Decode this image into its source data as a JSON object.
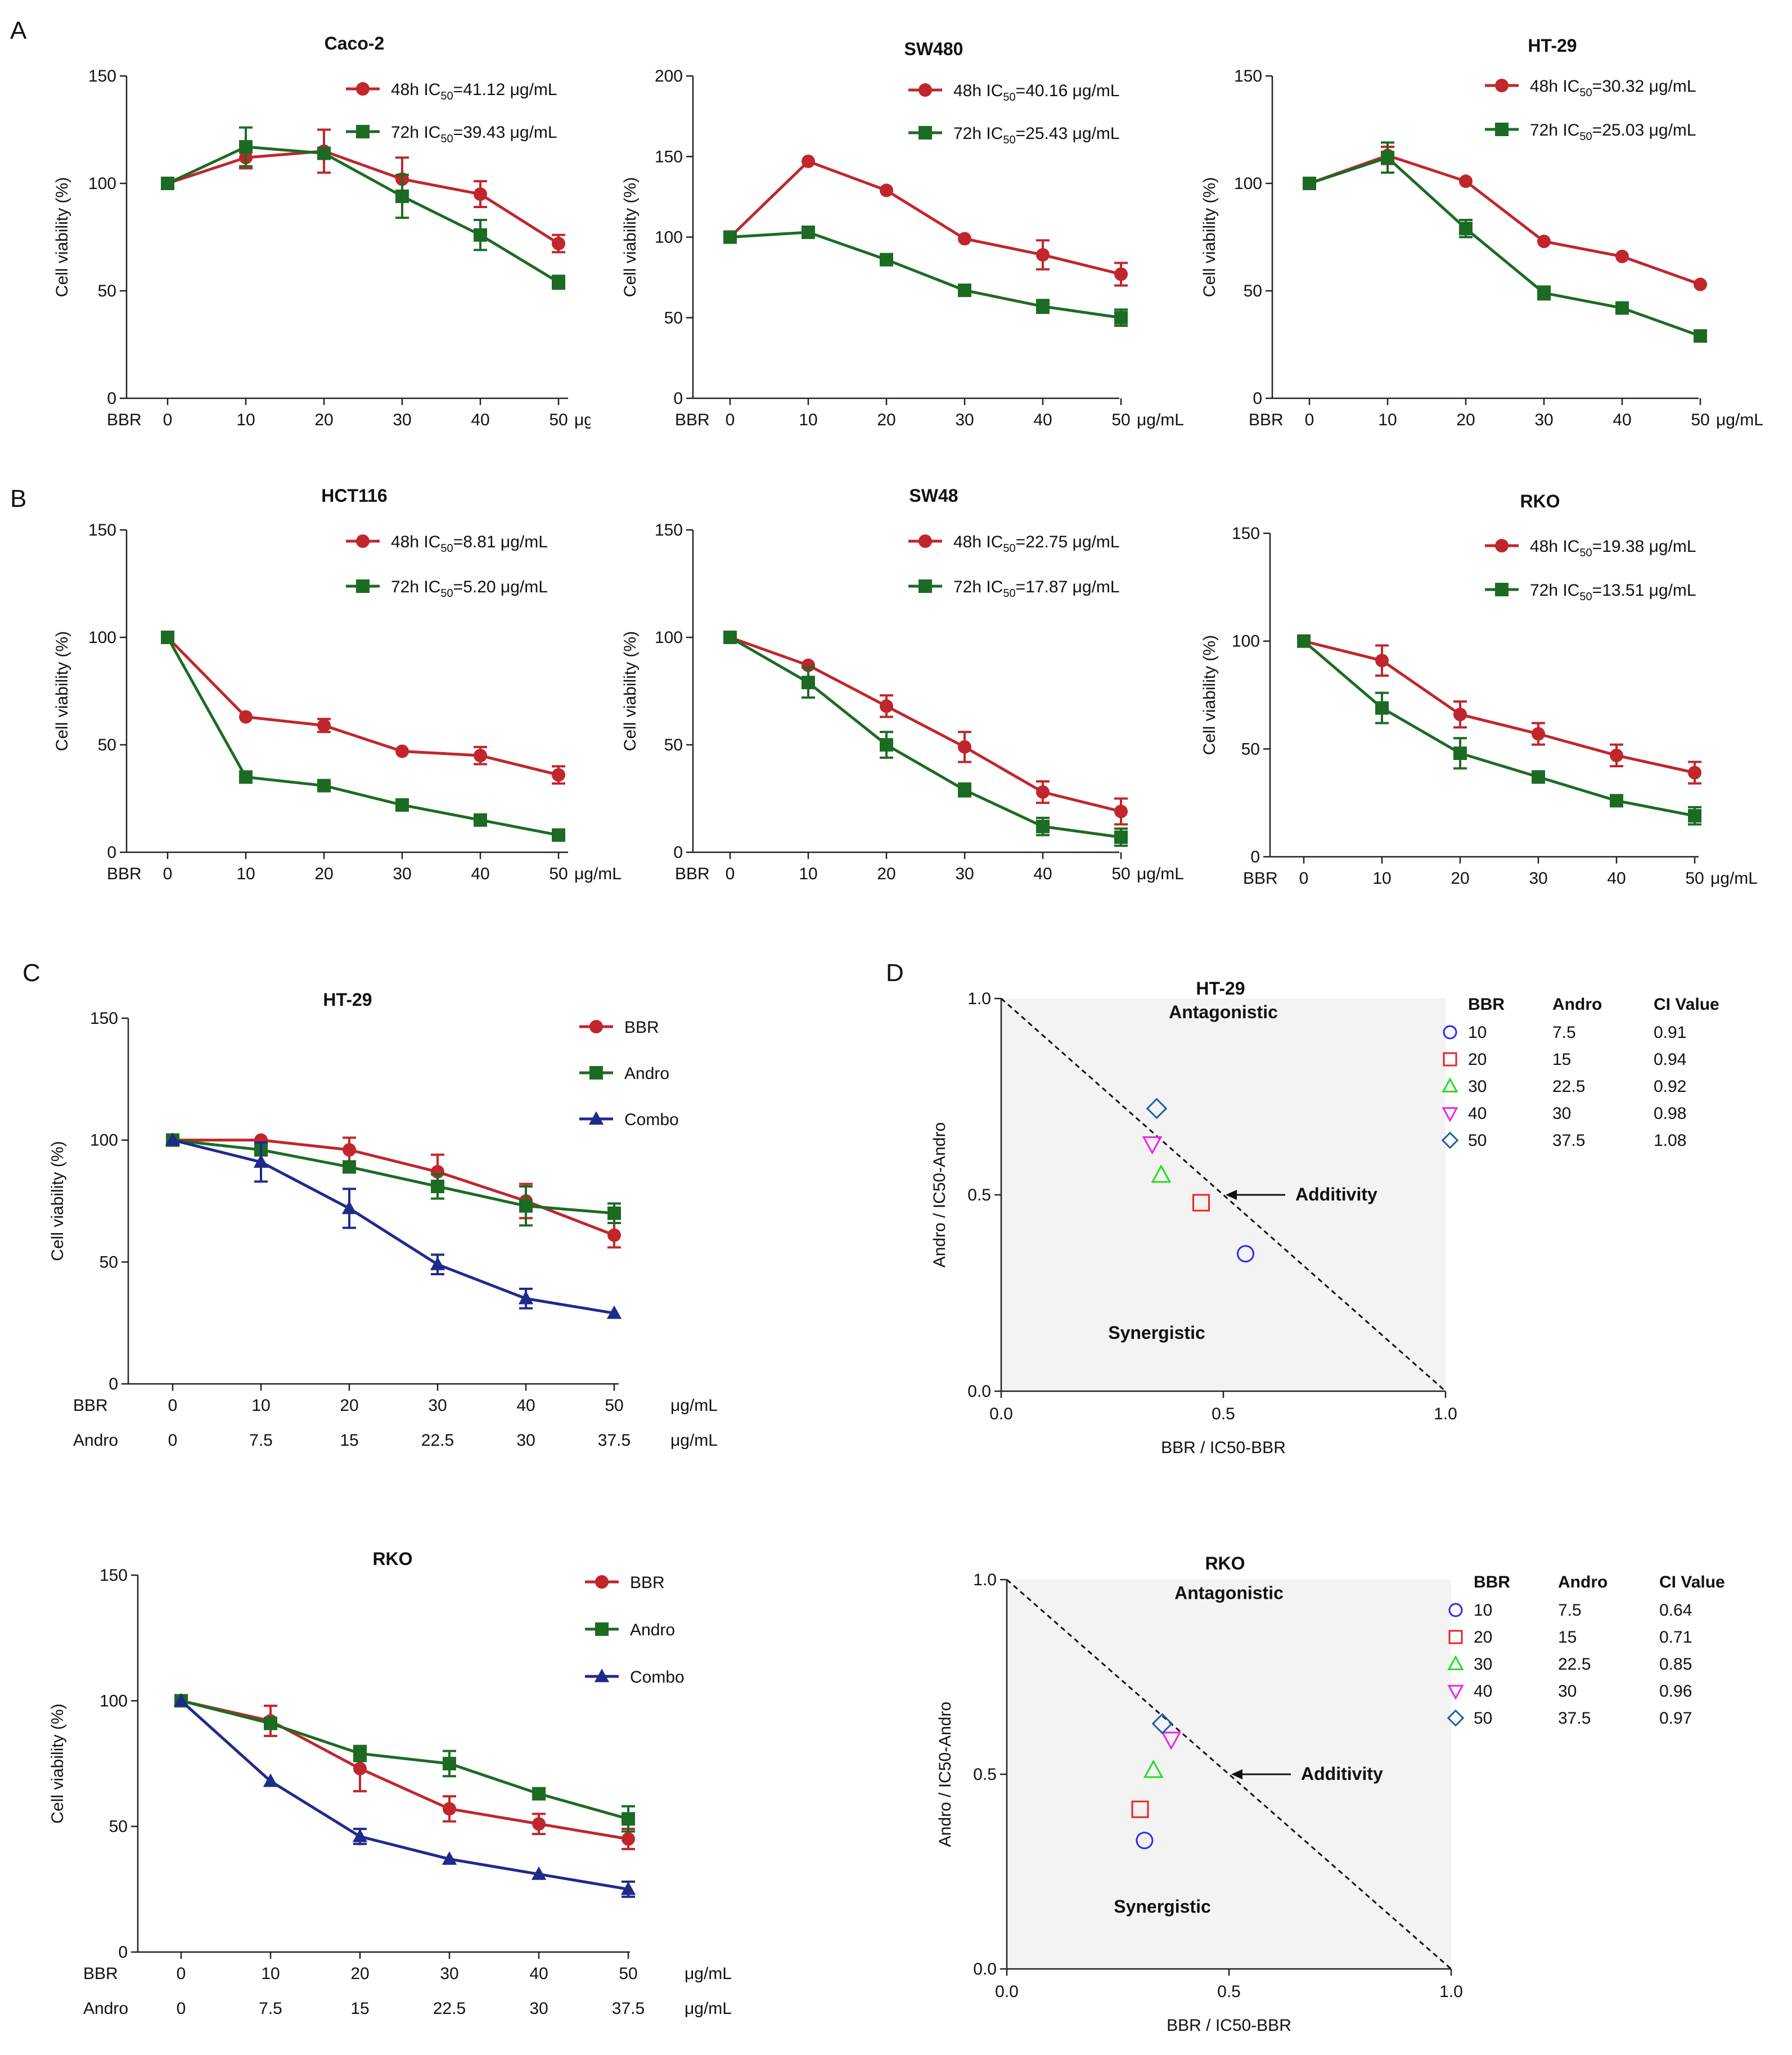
{
  "panel_labels": [
    "A",
    "B",
    "C",
    "D"
  ],
  "common": {
    "ylabel": "Cell viability (%)",
    "xprefix": "BBR",
    "xunit": "μg/mL",
    "x_doses": [
      0,
      10,
      20,
      30,
      40,
      50
    ]
  },
  "colors": {
    "series48": "#c0262b",
    "series72": "#1c6b23",
    "combo": "#1f2a8c",
    "m10": "#2b2bf0",
    "m20": "#ee2222",
    "m30": "#22dd22",
    "m40": "#ee22ee",
    "m50": "#1f5fa8",
    "shade": "#f3f3f3"
  },
  "chart_data": [
    {
      "id": "caco2",
      "type": "line",
      "title": "Caco-2",
      "ylim": [
        0,
        150
      ],
      "yticks": [
        0,
        50,
        100,
        150
      ],
      "categories": [
        "0",
        "10",
        "20",
        "30",
        "40",
        "50"
      ],
      "series": [
        {
          "name": "48h",
          "ic50": "41.12",
          "marker": "circle",
          "color": "#c0262b",
          "values": [
            100,
            112,
            115,
            102,
            95,
            72
          ],
          "errors": [
            0,
            5,
            10,
            10,
            6,
            4
          ]
        },
        {
          "name": "72h",
          "ic50": "39.43",
          "marker": "square",
          "color": "#1c6b23",
          "values": [
            100,
            117,
            114,
            94,
            76,
            54
          ],
          "errors": [
            0,
            9,
            0,
            10,
            7,
            3
          ]
        }
      ]
    },
    {
      "id": "sw480",
      "type": "line",
      "title": "SW480",
      "ylim": [
        0,
        200
      ],
      "yticks": [
        0,
        50,
        100,
        150,
        200
      ],
      "categories": [
        "0",
        "10",
        "20",
        "30",
        "40",
        "50"
      ],
      "series": [
        {
          "name": "48h",
          "ic50": "40.16",
          "marker": "circle",
          "color": "#c0262b",
          "values": [
            100,
            147,
            129,
            99,
            89,
            77
          ],
          "errors": [
            0,
            0,
            0,
            0,
            9,
            7
          ]
        },
        {
          "name": "72h",
          "ic50": "25.43",
          "marker": "square",
          "color": "#1c6b23",
          "values": [
            100,
            103,
            86,
            67,
            57,
            50
          ],
          "errors": [
            0,
            0,
            0,
            0,
            4,
            5
          ]
        }
      ]
    },
    {
      "id": "ht29",
      "type": "line",
      "title": "HT-29",
      "ylim": [
        0,
        150
      ],
      "yticks": [
        0,
        50,
        100,
        150
      ],
      "categories": [
        "0",
        "10",
        "20",
        "30",
        "40",
        "50"
      ],
      "series": [
        {
          "name": "48h",
          "ic50": "30.32",
          "marker": "circle",
          "color": "#c0262b",
          "values": [
            100,
            113,
            101,
            73,
            66,
            53
          ],
          "errors": [
            0,
            4,
            0,
            0,
            0,
            0
          ]
        },
        {
          "name": "72h",
          "ic50": "25.03",
          "marker": "square",
          "color": "#1c6b23",
          "values": [
            100,
            112,
            79,
            49,
            42,
            29
          ],
          "errors": [
            0,
            7,
            4,
            3,
            0,
            0
          ]
        }
      ]
    },
    {
      "id": "hct116",
      "type": "line",
      "title": "HCT116",
      "ylim": [
        0,
        150
      ],
      "yticks": [
        0,
        50,
        100,
        150
      ],
      "categories": [
        "0",
        "10",
        "20",
        "30",
        "40",
        "50"
      ],
      "series": [
        {
          "name": "48h",
          "ic50": "8.81",
          "marker": "circle",
          "color": "#c0262b",
          "values": [
            100,
            63,
            59,
            47,
            45,
            36
          ],
          "errors": [
            0,
            0,
            3,
            0,
            4,
            4
          ]
        },
        {
          "name": "72h",
          "ic50": "5.20",
          "marker": "square",
          "color": "#1c6b23",
          "values": [
            100,
            35,
            31,
            22,
            15,
            8
          ],
          "errors": [
            0,
            0,
            0,
            0,
            0,
            0
          ]
        }
      ]
    },
    {
      "id": "sw48",
      "type": "line",
      "title": "SW48",
      "ylim": [
        0,
        150
      ],
      "yticks": [
        0,
        50,
        100,
        150
      ],
      "categories": [
        "0",
        "10",
        "20",
        "30",
        "40",
        "50"
      ],
      "series": [
        {
          "name": "48h",
          "ic50": "22.75",
          "marker": "circle",
          "color": "#c0262b",
          "values": [
            100,
            87,
            68,
            49,
            28,
            19
          ],
          "errors": [
            0,
            0,
            5,
            7,
            5,
            6
          ]
        },
        {
          "name": "72h",
          "ic50": "17.87",
          "marker": "square",
          "color": "#1c6b23",
          "values": [
            100,
            79,
            50,
            29,
            12,
            7
          ],
          "errors": [
            0,
            7,
            6,
            3,
            4,
            4
          ]
        }
      ]
    },
    {
      "id": "rko_a",
      "type": "line",
      "title": "RKO",
      "ylim": [
        0,
        150
      ],
      "yticks": [
        0,
        50,
        100,
        150
      ],
      "categories": [
        "0",
        "10",
        "20",
        "30",
        "40",
        "50"
      ],
      "series": [
        {
          "name": "48h",
          "ic50": "19.38",
          "marker": "circle",
          "color": "#c0262b",
          "values": [
            100,
            91,
            66,
            57,
            47,
            39
          ],
          "errors": [
            0,
            7,
            6,
            5,
            5,
            5
          ]
        },
        {
          "name": "72h",
          "ic50": "13.51",
          "marker": "square",
          "color": "#1c6b23",
          "values": [
            100,
            69,
            48,
            37,
            26,
            19
          ],
          "errors": [
            0,
            7,
            7,
            0,
            0,
            4
          ]
        }
      ]
    },
    {
      "id": "ht29_combo",
      "type": "line",
      "title": "HT-29",
      "ylim": [
        0,
        150
      ],
      "yticks": [
        0,
        50,
        100,
        150
      ],
      "categories": [
        "0",
        "10",
        "20",
        "30",
        "40",
        "50"
      ],
      "andro_doses": [
        "0",
        "7.5",
        "15",
        "22.5",
        "30",
        "37.5"
      ],
      "series": [
        {
          "name": "BBR",
          "marker": "circle",
          "color": "#c0262b",
          "values": [
            100,
            100,
            96,
            87,
            75,
            61
          ],
          "errors": [
            0,
            0,
            5,
            7,
            7,
            5
          ]
        },
        {
          "name": "Andro",
          "marker": "square",
          "color": "#1c6b23",
          "values": [
            100,
            96,
            89,
            81,
            73,
            70
          ],
          "errors": [
            0,
            0,
            0,
            5,
            8,
            4
          ]
        },
        {
          "name": "Combo",
          "marker": "triangle",
          "color": "#1f2a8c",
          "values": [
            100,
            91,
            72,
            49,
            35,
            29
          ],
          "errors": [
            0,
            8,
            8,
            4,
            4,
            0
          ]
        }
      ]
    },
    {
      "id": "rko_combo",
      "type": "line",
      "title": "RKO",
      "ylim": [
        0,
        150
      ],
      "yticks": [
        0,
        50,
        100,
        150
      ],
      "categories": [
        "0",
        "10",
        "20",
        "30",
        "40",
        "50"
      ],
      "andro_doses": [
        "0",
        "7.5",
        "15",
        "22.5",
        "30",
        "37.5"
      ],
      "series": [
        {
          "name": "BBR",
          "marker": "circle",
          "color": "#c0262b",
          "values": [
            100,
            92,
            73,
            57,
            51,
            45
          ],
          "errors": [
            0,
            6,
            9,
            5,
            4,
            4
          ]
        },
        {
          "name": "Andro",
          "marker": "square",
          "color": "#1c6b23",
          "values": [
            100,
            91,
            79,
            75,
            63,
            53
          ],
          "errors": [
            0,
            0,
            3,
            5,
            0,
            5
          ]
        },
        {
          "name": "Combo",
          "marker": "triangle",
          "color": "#1f2a8c",
          "values": [
            100,
            68,
            46,
            37,
            31,
            25
          ],
          "errors": [
            0,
            0,
            3,
            0,
            0,
            3
          ]
        }
      ]
    },
    {
      "id": "iso_ht29",
      "type": "scatter",
      "title": "HT-29",
      "xlabel": "BBR / IC50-BBR",
      "ylabel": "Andro / IC50-Andro",
      "xlim": [
        0,
        1
      ],
      "ylim": [
        0,
        1
      ],
      "xticks": [
        "0.0",
        "0.5",
        "1.0"
      ],
      "yticks": [
        "0.0",
        "0.5",
        "1.0"
      ],
      "regions": {
        "upper": "Antagonistic",
        "lower": "Synergistic",
        "line": "Additivity"
      },
      "table_headers": [
        "BBR",
        "Andro",
        "CI Value"
      ],
      "points": [
        {
          "bbr": "10",
          "andro": "7.5",
          "ci": "0.91",
          "marker": "circle",
          "color": "#2b2bf0",
          "x": 0.55,
          "y": 0.35
        },
        {
          "bbr": "20",
          "andro": "15",
          "ci": "0.94",
          "marker": "square",
          "color": "#ee2222",
          "x": 0.45,
          "y": 0.48
        },
        {
          "bbr": "30",
          "andro": "22.5",
          "ci": "0.92",
          "marker": "triangle",
          "color": "#22dd22",
          "x": 0.36,
          "y": 0.55
        },
        {
          "bbr": "40",
          "andro": "30",
          "ci": "0.98",
          "marker": "tridown",
          "color": "#ee22ee",
          "x": 0.34,
          "y": 0.63
        },
        {
          "bbr": "50",
          "andro": "37.5",
          "ci": "1.08",
          "marker": "diamond",
          "color": "#1f5fa8",
          "x": 0.35,
          "y": 0.72
        }
      ]
    },
    {
      "id": "iso_rko",
      "type": "scatter",
      "title": "RKO",
      "xlabel": "BBR / IC50-BBR",
      "ylabel": "Andro / IC50-Andro",
      "xlim": [
        0,
        1
      ],
      "ylim": [
        0,
        1
      ],
      "xticks": [
        "0.0",
        "0.5",
        "1.0"
      ],
      "yticks": [
        "0.0",
        "0.5",
        "1.0"
      ],
      "regions": {
        "upper": "Antagonistic",
        "lower": "Synergistic",
        "line": "Additivity"
      },
      "table_headers": [
        "BBR",
        "Andro",
        "CI Value"
      ],
      "points": [
        {
          "bbr": "10",
          "andro": "7.5",
          "ci": "0.64",
          "marker": "circle",
          "color": "#2b2bf0",
          "x": 0.31,
          "y": 0.33
        },
        {
          "bbr": "20",
          "andro": "15",
          "ci": "0.71",
          "marker": "square",
          "color": "#ee2222",
          "x": 0.3,
          "y": 0.41
        },
        {
          "bbr": "30",
          "andro": "22.5",
          "ci": "0.85",
          "marker": "triangle",
          "color": "#22dd22",
          "x": 0.33,
          "y": 0.51
        },
        {
          "bbr": "40",
          "andro": "30",
          "ci": "0.96",
          "marker": "tridown",
          "color": "#ee22ee",
          "x": 0.37,
          "y": 0.59
        },
        {
          "bbr": "50",
          "andro": "37.5",
          "ci": "0.97",
          "marker": "diamond",
          "color": "#1f5fa8",
          "x": 0.35,
          "y": 0.63
        }
      ]
    }
  ]
}
